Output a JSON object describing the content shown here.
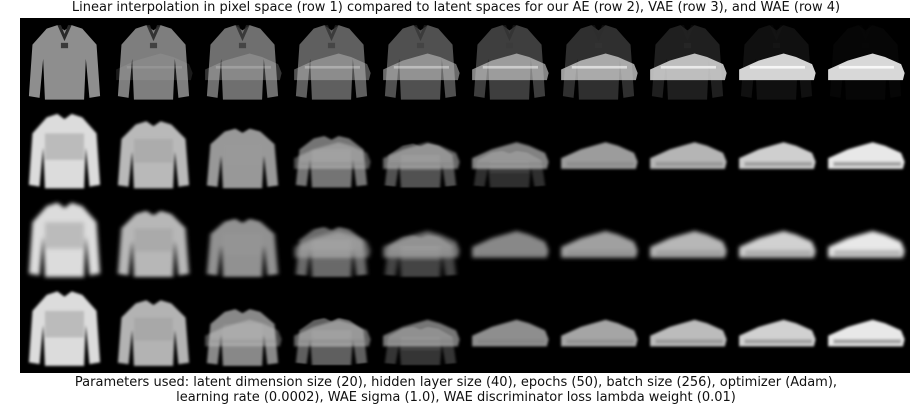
{
  "figure": {
    "title": "Linear interpolation in pixel space (row 1) compared to latent spaces for our AE (row 2), VAE (row 3), and WAE (row 4)",
    "caption_line1": "Parameters used: latent dimension size (20), hidden layer size (40), epochs (50), batch size (256), optimizer (Adam),",
    "caption_line2": "learning rate (0.0002), WAE sigma (1.0), WAE discriminator loss lambda weight (0.01)"
  },
  "grid": {
    "rows": 4,
    "columns": 10,
    "row_labels": [],
    "start_item": "sweater",
    "end_item": "sneaker",
    "row_models": [
      "pixel space",
      "AE",
      "VAE",
      "WAE"
    ],
    "colors": {
      "background": "#000000",
      "garment_light": "#e6e6e6",
      "garment_mid": "#9a9a9a",
      "garment_dim": "#5e5e5e"
    }
  }
}
